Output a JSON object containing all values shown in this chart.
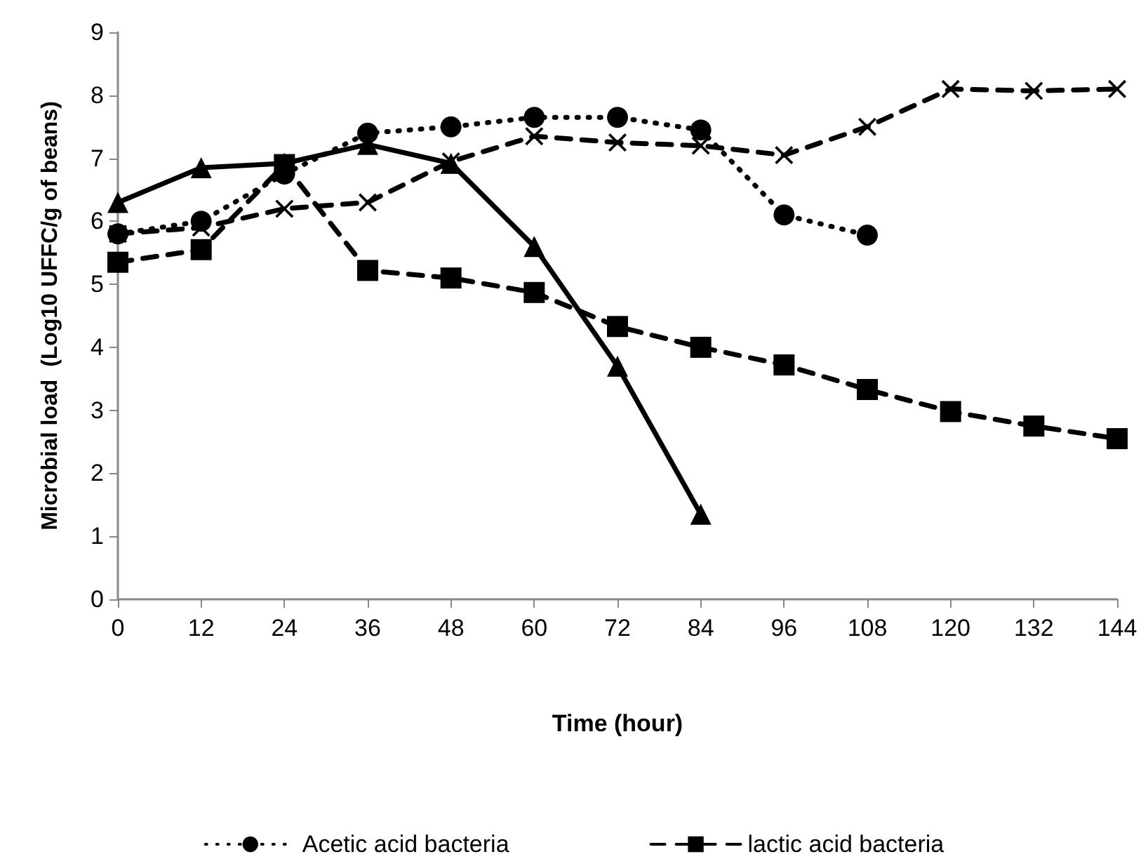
{
  "chart_data": {
    "type": "line",
    "xlabel": "Time (hour)",
    "ylabel": "Microbial load  (Log10 UFFC/g of beans)",
    "x": [
      0,
      12,
      24,
      36,
      48,
      60,
      72,
      84,
      96,
      108,
      120,
      132,
      144
    ],
    "xlim": [
      0,
      144
    ],
    "xticks": [
      0,
      12,
      24,
      36,
      48,
      60,
      72,
      84,
      96,
      108,
      120,
      132,
      144
    ],
    "ylim": [
      0,
      9
    ],
    "yticks": [
      0,
      1,
      2,
      3,
      4,
      5,
      6,
      7,
      8,
      9
    ],
    "grid": false,
    "legend": "bottom",
    "series": [
      {
        "name": "Acetic acid bacteria",
        "color": "#000000",
        "marker": "circle",
        "line_style": "dotted",
        "values": [
          5.8,
          6.0,
          6.75,
          7.4,
          7.5,
          7.65,
          7.65,
          7.45,
          6.1,
          5.78,
          null,
          null,
          null
        ]
      },
      {
        "color": "#000000",
        "marker": "cross",
        "line_style": "dashed",
        "values": [
          5.8,
          5.9,
          6.2,
          6.3,
          6.95,
          7.35,
          7.25,
          7.2,
          7.05,
          7.5,
          8.1,
          8.07,
          8.1
        ]
      },
      {
        "color": "#000000",
        "marker": "triangle",
        "line_style": "solid",
        "values": [
          6.3,
          6.85,
          6.92,
          7.22,
          6.92,
          5.6,
          3.7,
          1.35,
          null,
          null,
          null,
          null,
          null
        ]
      },
      {
        "name": "lactic acid bacteria",
        "color": "#000000",
        "marker": "square",
        "line_style": "dashed",
        "values": [
          5.35,
          5.55,
          6.9,
          5.22,
          5.1,
          4.87,
          4.33,
          4.0,
          3.72,
          3.33,
          2.98,
          2.75,
          2.55
        ]
      }
    ]
  }
}
